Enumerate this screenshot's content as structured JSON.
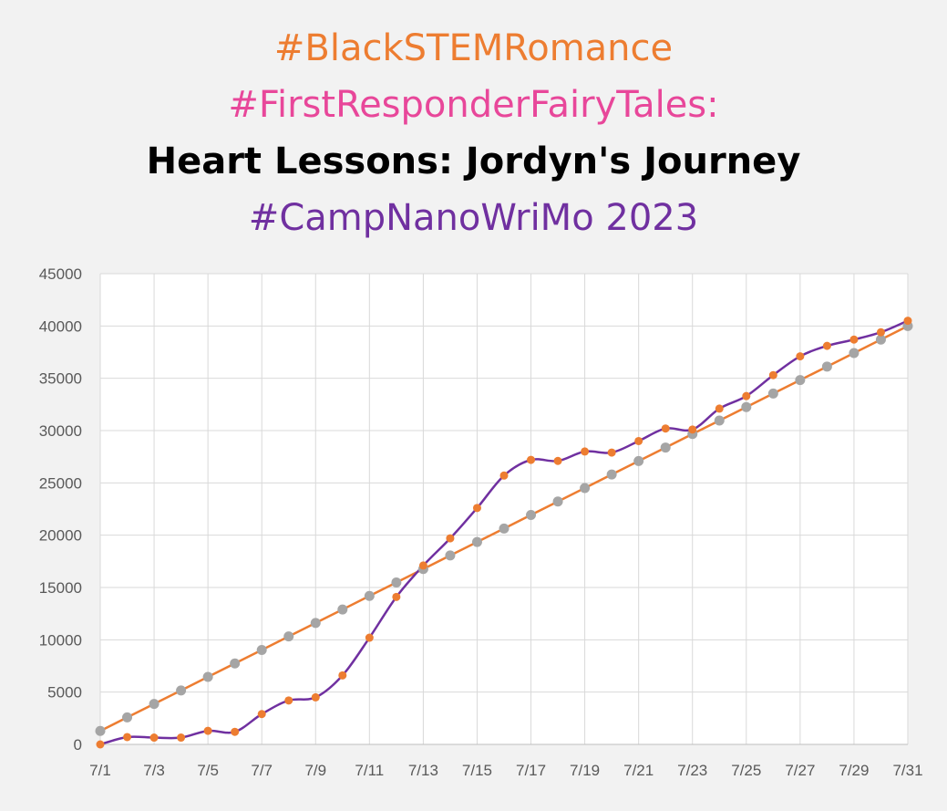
{
  "titles": {
    "line1": "#BlackSTEMRomance",
    "line2": "#FirstResponderFairyTales:",
    "line3": "Heart Lessons: Jordyn's Journey",
    "line4": "#CampNanoWriMo 2023"
  },
  "chart_data": {
    "type": "line",
    "ylim": [
      0,
      45000
    ],
    "y_ticks": [
      "0",
      "5000",
      "10000",
      "15000",
      "20000",
      "25000",
      "30000",
      "35000",
      "40000",
      "45000"
    ],
    "x_ticks": [
      "7/1",
      "7/3",
      "7/5",
      "7/7",
      "7/9",
      "7/11",
      "7/13",
      "7/15",
      "7/17",
      "7/19",
      "7/21",
      "7/23",
      "7/25",
      "7/27",
      "7/29",
      "7/31"
    ],
    "grid": true,
    "legend": "none",
    "categories": [
      "7/1",
      "7/2",
      "7/3",
      "7/4",
      "7/5",
      "7/6",
      "7/7",
      "7/8",
      "7/9",
      "7/10",
      "7/11",
      "7/12",
      "7/13",
      "7/14",
      "7/15",
      "7/16",
      "7/17",
      "7/18",
      "7/19",
      "7/20",
      "7/21",
      "7/22",
      "7/23",
      "7/24",
      "7/25",
      "7/26",
      "7/27",
      "7/28",
      "7/29",
      "7/30",
      "7/31"
    ],
    "series": [
      {
        "line_color": "#ed7d31",
        "marker_color": "#a5a5a5",
        "smooth": false,
        "values": [
          1290,
          2580,
          3870,
          5160,
          6450,
          7740,
          9030,
          10320,
          11610,
          12900,
          14190,
          15480,
          16770,
          18060,
          19350,
          20640,
          21930,
          23220,
          24510,
          25800,
          27090,
          28380,
          29670,
          30960,
          32250,
          33540,
          34830,
          36120,
          37410,
          38700,
          40000
        ]
      },
      {
        "line_color": "#7030a0",
        "marker_color": "#ed7d31",
        "smooth": true,
        "values": [
          0,
          700,
          650,
          650,
          1300,
          1200,
          2900,
          4200,
          4500,
          6600,
          10200,
          14100,
          17100,
          19700,
          22600,
          25700,
          27200,
          27100,
          28000,
          27900,
          29000,
          30200,
          30100,
          32100,
          33300,
          35300,
          37100,
          38100,
          38700,
          39400,
          40500
        ]
      }
    ]
  }
}
